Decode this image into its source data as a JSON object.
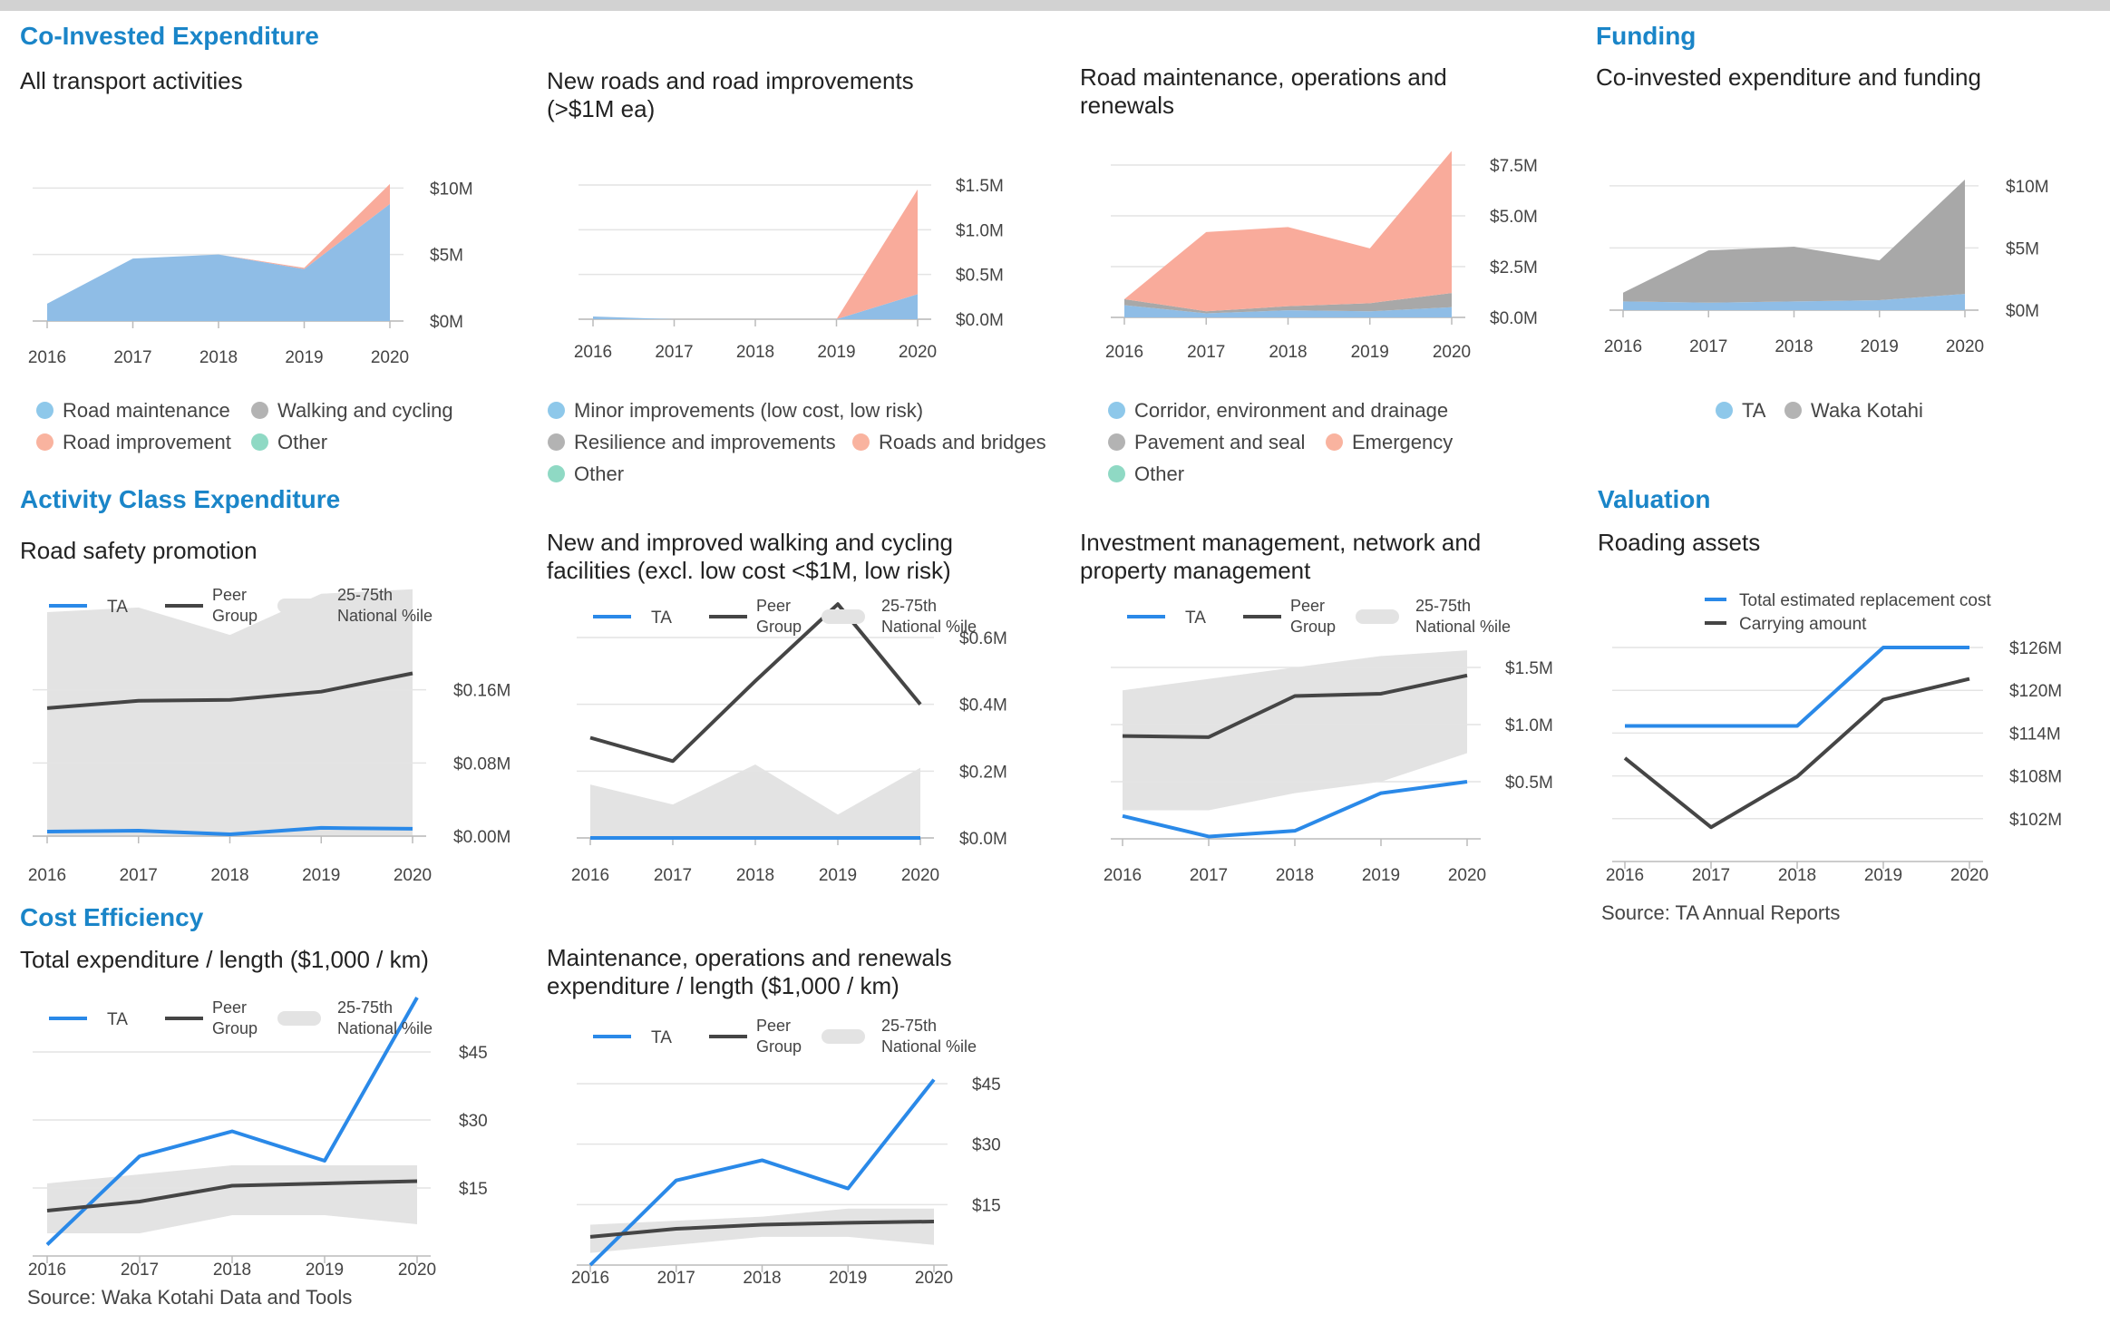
{
  "colors": {
    "section": "#1a85c8",
    "blue_area": "#8fbde6",
    "salmon_area": "#f9ab9b",
    "gray_area": "#a8a8a8",
    "teal_area": "#8fd9c4",
    "ta_line": "#2a89e8",
    "peer_line": "#454545",
    "band": "#e3e3e3",
    "grid": "#e4e4e4",
    "axis": "#bbbbbb",
    "dot_blue": "#8ec8ea",
    "dot_gray": "#b3b3b3",
    "dot_salmon": "#f9b39f",
    "dot_teal": "#8fd9c4"
  },
  "sections": {
    "co_invested": "Co-Invested Expenditure",
    "funding": "Funding",
    "activity_class": "Activity Class Expenditure",
    "valuation": "Valuation",
    "cost_efficiency": "Cost Efficiency"
  },
  "trend_legend": {
    "ta": "TA",
    "peer": "Peer\nGroup",
    "band": "25-75th\nNational %ile"
  },
  "sources": {
    "valuation": "Source: TA Annual Reports",
    "cost": "Source: Waka Kotahi Data and Tools"
  },
  "charts": {
    "all_transport": {
      "title": "All transport activities",
      "legend": [
        {
          "label": "Road maintenance",
          "icon": "dot",
          "color": "#8ec8ea"
        },
        {
          "label": "Walking and cycling",
          "icon": "dot",
          "color": "#b3b3b3"
        },
        {
          "label": "Road improvement",
          "icon": "dot",
          "color": "#f9b39f"
        },
        {
          "label": "Other",
          "icon": "dot",
          "color": "#8fd9c4"
        }
      ],
      "chart_data": {
        "type": "area",
        "x": [
          "2016",
          "2017",
          "2018",
          "2019",
          "2020"
        ],
        "series": [
          {
            "name": "Road maintenance",
            "values": [
              1.3,
              4.7,
              5.0,
              3.9,
              8.8
            ],
            "color": "#8fbde6"
          },
          {
            "name": "Road improvement",
            "values": [
              0,
              0,
              0,
              0.1,
              1.5
            ],
            "color": "#f9ab9b"
          }
        ],
        "yticks": [
          {
            "v": 0,
            "label": "$0M"
          },
          {
            "v": 5,
            "label": "$5M"
          },
          {
            "v": 10,
            "label": "$10M"
          }
        ],
        "ylim": [
          0,
          10.5
        ]
      }
    },
    "new_roads": {
      "title": "New roads and road improvements (>$1M ea)",
      "legend": [
        {
          "label": "Minor improvements (low cost, low risk)",
          "icon": "dot",
          "color": "#8ec8ea"
        },
        {
          "label": "Resilience and improvements",
          "icon": "dot",
          "color": "#b3b3b3"
        },
        {
          "label": "Roads and bridges",
          "icon": "dot",
          "color": "#f9b39f"
        },
        {
          "label": "Other",
          "icon": "dot",
          "color": "#8fd9c4"
        }
      ],
      "chart_data": {
        "type": "area",
        "x": [
          "2016",
          "2017",
          "2018",
          "2019",
          "2020"
        ],
        "series": [
          {
            "name": "Minor improvements (low cost, low risk)",
            "values": [
              0.03,
              0,
              0,
              0,
              0.28
            ],
            "color": "#8fbde6"
          },
          {
            "name": "Roads and bridges",
            "values": [
              0,
              0,
              0,
              0,
              1.17
            ],
            "color": "#f9ab9b"
          }
        ],
        "yticks": [
          {
            "v": 0,
            "label": "$0.0M"
          },
          {
            "v": 0.5,
            "label": "$0.5M"
          },
          {
            "v": 1.0,
            "label": "$1.0M"
          },
          {
            "v": 1.5,
            "label": "$1.5M"
          }
        ],
        "ylim": [
          0,
          1.5
        ]
      }
    },
    "road_maintenance": {
      "title": "Road maintenance, operations and renewals",
      "legend": [
        {
          "label": "Corridor, environment and drainage",
          "icon": "dot",
          "color": "#8ec8ea"
        },
        {
          "label": "Pavement and seal",
          "icon": "dot",
          "color": "#b3b3b3"
        },
        {
          "label": "Emergency",
          "icon": "dot",
          "color": "#f9b39f"
        },
        {
          "label": "Other",
          "icon": "dot",
          "color": "#8fd9c4"
        }
      ],
      "chart_data": {
        "type": "area",
        "x": [
          "2016",
          "2017",
          "2018",
          "2019",
          "2020"
        ],
        "series": [
          {
            "name": "Corridor, environment and drainage",
            "values": [
              0.6,
              0.2,
              0.35,
              0.3,
              0.5
            ],
            "color": "#8fbde6"
          },
          {
            "name": "Pavement and seal",
            "values": [
              0.3,
              0.1,
              0.2,
              0.4,
              0.7
            ],
            "color": "#a8a8a8"
          },
          {
            "name": "Emergency",
            "values": [
              0,
              3.9,
              3.9,
              2.7,
              7.0
            ],
            "color": "#f9ab9b"
          }
        ],
        "yticks": [
          {
            "v": 0,
            "label": "$0.0M"
          },
          {
            "v": 2.5,
            "label": "$2.5M"
          },
          {
            "v": 5.0,
            "label": "$5.0M"
          },
          {
            "v": 7.5,
            "label": "$7.5M"
          }
        ],
        "ylim": [
          0,
          7.5
        ]
      }
    },
    "funding": {
      "title": "Co-invested expenditure and funding",
      "legend": [
        {
          "label": "TA",
          "icon": "dot",
          "color": "#8ec8ea"
        },
        {
          "label": "Waka Kotahi",
          "icon": "dot",
          "color": "#b3b3b3"
        }
      ],
      "chart_data": {
        "type": "area",
        "x": [
          "2016",
          "2017",
          "2018",
          "2019",
          "2020"
        ],
        "series": [
          {
            "name": "TA",
            "values": [
              0.7,
              0.6,
              0.7,
              0.8,
              1.3
            ],
            "color": "#8fbde6"
          },
          {
            "name": "Waka Kotahi",
            "values": [
              0.7,
              4.2,
              4.4,
              3.2,
              9.2
            ],
            "color": "#a8a8a8"
          }
        ],
        "yticks": [
          {
            "v": 0,
            "label": "$0M"
          },
          {
            "v": 5,
            "label": "$5M"
          },
          {
            "v": 10,
            "label": "$10M"
          }
        ],
        "ylim": [
          0,
          10.5
        ]
      }
    },
    "road_safety": {
      "title": "Road safety promotion",
      "chart_data": {
        "type": "line",
        "x": [
          "2016",
          "2017",
          "2018",
          "2019",
          "2020"
        ],
        "band": {
          "low": [
            0,
            0,
            0,
            0,
            0
          ],
          "high": [
            0.245,
            0.25,
            0.22,
            0.265,
            0.27
          ]
        },
        "series": [
          {
            "name": "TA",
            "values": [
              0.005,
              0.006,
              0.002,
              0.009,
              0.008
            ]
          },
          {
            "name": "Peer Group",
            "values": [
              0.14,
              0.148,
              0.149,
              0.158,
              0.178
            ]
          }
        ],
        "yticks": [
          {
            "v": 0,
            "label": "$0.00M"
          },
          {
            "v": 0.08,
            "label": "$0.08M"
          },
          {
            "v": 0.16,
            "label": "$0.16M"
          }
        ],
        "ylim": [
          0,
          0.24
        ]
      }
    },
    "walking_cycling": {
      "title": "New and improved walking and cycling facilities (excl. low cost <$1M, low risk)",
      "chart_data": {
        "type": "line",
        "x": [
          "2016",
          "2017",
          "2018",
          "2019",
          "2020"
        ],
        "band": {
          "low": [
            0,
            0,
            0,
            0,
            0
          ],
          "high": [
            0.16,
            0.1,
            0.22,
            0.07,
            0.21
          ]
        },
        "series": [
          {
            "name": "TA",
            "values": [
              0,
              0,
              0,
              0,
              0
            ]
          },
          {
            "name": "Peer Group",
            "values": [
              0.3,
              0.23,
              0.47,
              0.7,
              0.4
            ]
          }
        ],
        "yticks": [
          {
            "v": 0,
            "label": "$0.0M"
          },
          {
            "v": 0.2,
            "label": "$0.2M"
          },
          {
            "v": 0.4,
            "label": "$0.4M"
          },
          {
            "v": 0.6,
            "label": "$0.6M"
          }
        ],
        "ylim": [
          0,
          0.6
        ]
      }
    },
    "investment_mgmt": {
      "title": "Investment management, network and property management",
      "chart_data": {
        "type": "line",
        "x": [
          "2016",
          "2017",
          "2018",
          "2019",
          "2020"
        ],
        "band": {
          "low": [
            0.25,
            0.25,
            0.4,
            0.5,
            0.75
          ],
          "high": [
            1.3,
            1.4,
            1.5,
            1.6,
            1.65
          ]
        },
        "series": [
          {
            "name": "TA",
            "values": [
              0.2,
              0.02,
              0.07,
              0.4,
              0.5
            ]
          },
          {
            "name": "Peer Group",
            "values": [
              0.9,
              0.89,
              1.25,
              1.27,
              1.43
            ]
          }
        ],
        "yticks": [
          {
            "v": 0.5,
            "label": "$0.5M"
          },
          {
            "v": 1.0,
            "label": "$1.0M"
          },
          {
            "v": 1.5,
            "label": "$1.5M"
          }
        ],
        "ylim": [
          0,
          1.5
        ]
      }
    },
    "roading_assets": {
      "title": "Roading assets",
      "legend": [
        {
          "label": "Total estimated replacement cost",
          "icon": "line",
          "color": "#2a89e8"
        },
        {
          "label": "Carrying amount",
          "icon": "line",
          "color": "#454545"
        }
      ],
      "chart_data": {
        "type": "line",
        "x": [
          "2016",
          "2017",
          "2018",
          "2019",
          "2020"
        ],
        "series": [
          {
            "name": "Total estimated replacement cost",
            "values": [
              115,
              115,
              115,
              126,
              126
            ],
            "color": "#2a89e8"
          },
          {
            "name": "Carrying amount",
            "values": [
              110.5,
              100.8,
              107.9,
              118.7,
              121.6
            ],
            "color": "#454545"
          }
        ],
        "yticks": [
          {
            "v": 102,
            "label": "$102M"
          },
          {
            "v": 108,
            "label": "$108M"
          },
          {
            "v": 114,
            "label": "$114M"
          },
          {
            "v": 120,
            "label": "$120M"
          },
          {
            "v": 126,
            "label": "$126M"
          }
        ],
        "ylim": [
          96,
          126
        ]
      }
    },
    "total_per_length": {
      "title": "Total expenditure / length ($1,000 / km)",
      "chart_data": {
        "type": "line",
        "x": [
          "2016",
          "2017",
          "2018",
          "2019",
          "2020"
        ],
        "band": {
          "low": [
            5,
            5,
            9,
            9,
            7
          ],
          "high": [
            16,
            18,
            20,
            20,
            20
          ]
        },
        "series": [
          {
            "name": "TA",
            "values": [
              2.5,
              22,
              27.5,
              21,
              57
            ]
          },
          {
            "name": "Peer Group",
            "values": [
              10,
              12,
              15.5,
              16,
              16.5
            ]
          }
        ],
        "yticks": [
          {
            "v": 15,
            "label": "$15"
          },
          {
            "v": 30,
            "label": "$30"
          },
          {
            "v": 45,
            "label": "$45"
          }
        ],
        "ylim": [
          0,
          45
        ]
      }
    },
    "maintenance_per_length": {
      "title": "Maintenance, operations and renewals expenditure / length ($1,000 / km)",
      "chart_data": {
        "type": "line",
        "x": [
          "2016",
          "2017",
          "2018",
          "2019",
          "2020"
        ],
        "band": {
          "low": [
            3,
            5,
            7,
            7,
            5
          ],
          "high": [
            10,
            11,
            12,
            14,
            14
          ]
        },
        "series": [
          {
            "name": "TA",
            "values": [
              0,
              21,
              26,
              19,
              46
            ]
          },
          {
            "name": "Peer Group",
            "values": [
              7,
              9,
              10,
              10.5,
              10.8
            ]
          }
        ],
        "yticks": [
          {
            "v": 15,
            "label": "$15"
          },
          {
            "v": 30,
            "label": "$30"
          },
          {
            "v": 45,
            "label": "$45"
          }
        ],
        "ylim": [
          0,
          45
        ]
      }
    }
  }
}
